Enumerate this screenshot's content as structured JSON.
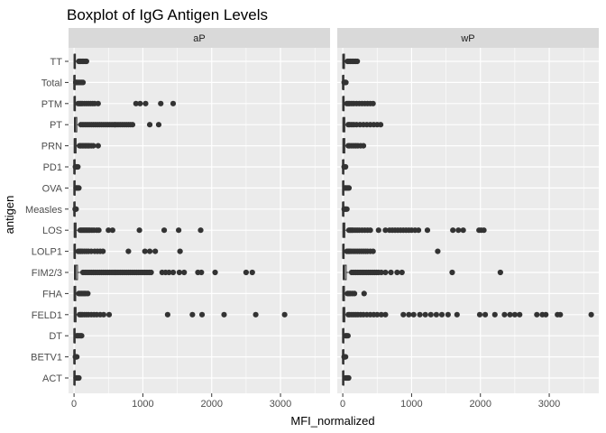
{
  "chart_data": {
    "type": "boxplot",
    "title": "Boxplot of IgG Antigen Levels",
    "xlabel": "MFI_normalized",
    "ylabel": "antigen",
    "xlim": [
      -80,
      3720
    ],
    "xticks": [
      0,
      1000,
      2000,
      3000
    ],
    "xtick_labels": [
      "0",
      "1000",
      "2000",
      "3000"
    ],
    "categories": [
      "TT",
      "Total",
      "PTM",
      "PT",
      "PRN",
      "PD1",
      "OVA",
      "Measles",
      "LOS",
      "LOLP1",
      "FIM2/3",
      "FHA",
      "FELD1",
      "DT",
      "BETV1",
      "ACT"
    ],
    "colors": {
      "panel": "#ebebeb",
      "grid": "#ffffff",
      "strip": "#d9d9d9",
      "points": "#333333"
    },
    "panels": [
      {
        "name": "aP",
        "boxes": [
          {
            "antigen": "TT",
            "q1": 2,
            "median": 8,
            "q3": 20,
            "wmax": 60,
            "outliers": [
              70,
              85,
              100,
              120,
              140,
              160,
              180
            ]
          },
          {
            "antigen": "Total",
            "q1": 1,
            "median": 3,
            "q3": 8,
            "wmax": 20,
            "outliers": [
              25,
              35,
              50,
              70,
              90,
              110,
              130
            ]
          },
          {
            "antigen": "PTM",
            "q1": 2,
            "median": 6,
            "q3": 20,
            "wmax": 50,
            "outliers": [
              60,
              80,
              100,
              120,
              150,
              180,
              210,
              240,
              270,
              300,
              350,
              900,
              960,
              1040,
              1260,
              1440
            ]
          },
          {
            "antigen": "PT",
            "q1": 5,
            "median": 15,
            "q3": 40,
            "wmax": 90,
            "outliers": [
              100,
              130,
              160,
              190,
              220,
              250,
              280,
              310,
              340,
              370,
              400,
              430,
              460,
              490,
              520,
              550,
              580,
              610,
              640,
              670,
              700,
              730,
              760,
              790,
              820,
              850,
              1100,
              1230
            ]
          },
          {
            "antigen": "PRN",
            "q1": 3,
            "median": 10,
            "q3": 30,
            "wmax": 70,
            "outliers": [
              80,
              100,
              120,
              140,
              160,
              180,
              200,
              220,
              250,
              280,
              350
            ]
          },
          {
            "antigen": "PD1",
            "q1": 1,
            "median": 3,
            "q3": 8,
            "wmax": 15,
            "outliers": [
              20,
              30,
              40,
              55
            ]
          },
          {
            "antigen": "OVA",
            "q1": 1,
            "median": 4,
            "q3": 10,
            "wmax": 25,
            "outliers": [
              30,
              40,
              55,
              70
            ]
          },
          {
            "antigen": "Measles",
            "q1": 1,
            "median": 3,
            "q3": 6,
            "wmax": 12,
            "outliers": [
              16,
              22,
              30
            ]
          },
          {
            "antigen": "LOS",
            "q1": 3,
            "median": 10,
            "q3": 30,
            "wmax": 80,
            "outliers": [
              90,
              110,
              130,
              150,
              170,
              190,
              210,
              230,
              260,
              290,
              330,
              360,
              500,
              560,
              950,
              1310,
              1520,
              1840
            ]
          },
          {
            "antigen": "LOLP1",
            "q1": 2,
            "median": 6,
            "q3": 20,
            "wmax": 50,
            "outliers": [
              60,
              80,
              100,
              120,
              150,
              180,
              210,
              250,
              300,
              340,
              380,
              420,
              790,
              1030,
              1100,
              1180,
              1540
            ]
          },
          {
            "antigen": "FIM2/3",
            "q1": 5,
            "median": 20,
            "q3": 50,
            "wmax": 120,
            "outliers": [
              130,
              160,
              190,
              220,
              250,
              280,
              310,
              340,
              370,
              400,
              430,
              460,
              490,
              520,
              550,
              580,
              610,
              640,
              670,
              700,
              730,
              760,
              790,
              820,
              850,
              880,
              910,
              940,
              970,
              1000,
              1030,
              1060,
              1090,
              1120,
              1280,
              1330,
              1380,
              1440,
              1530,
              1600,
              1800,
              1850,
              2050,
              2500,
              2590
            ]
          },
          {
            "antigen": "FHA",
            "q1": 2,
            "median": 8,
            "q3": 25,
            "wmax": 60,
            "outliers": [
              70,
              90,
              110,
              130,
              150,
              170,
              200
            ]
          },
          {
            "antigen": "FELD1",
            "q1": 3,
            "median": 10,
            "q3": 30,
            "wmax": 70,
            "outliers": [
              80,
              100,
              120,
              150,
              180,
              210,
              250,
              290,
              330,
              380,
              430,
              510,
              1360,
              1720,
              1860,
              2180,
              2640,
              3060
            ]
          },
          {
            "antigen": "DT",
            "q1": 1,
            "median": 4,
            "q3": 12,
            "wmax": 30,
            "outliers": [
              40,
              55,
              75,
              95,
              110
            ]
          },
          {
            "antigen": "BETV1",
            "q1": 1,
            "median": 3,
            "q3": 8,
            "wmax": 15,
            "outliers": [
              20,
              30,
              40
            ]
          },
          {
            "antigen": "ACT",
            "q1": 1,
            "median": 4,
            "q3": 12,
            "wmax": 25,
            "outliers": [
              30,
              40,
              55,
              70
            ]
          }
        ]
      },
      {
        "name": "wP",
        "boxes": [
          {
            "antigen": "TT",
            "q1": 2,
            "median": 8,
            "q3": 25,
            "wmax": 60,
            "outliers": [
              70,
              90,
              110,
              130,
              150,
              170,
              190,
              210
            ]
          },
          {
            "antigen": "Total",
            "q1": 1,
            "median": 3,
            "q3": 8,
            "wmax": 15,
            "outliers": [
              20,
              30,
              45
            ]
          },
          {
            "antigen": "PTM",
            "q1": 2,
            "median": 6,
            "q3": 20,
            "wmax": 50,
            "outliers": [
              60,
              80,
              100,
              130,
              160,
              200,
              240,
              280,
              320,
              360,
              400,
              440
            ]
          },
          {
            "antigen": "PT",
            "q1": 3,
            "median": 10,
            "q3": 30,
            "wmax": 70,
            "outliers": [
              80,
              100,
              130,
              160,
              200,
              250,
              300,
              350,
              400,
              450,
              500,
              550
            ]
          },
          {
            "antigen": "PRN",
            "q1": 3,
            "median": 10,
            "q3": 30,
            "wmax": 70,
            "outliers": [
              80,
              100,
              130,
              160,
              190,
              220,
              260,
              300
            ]
          },
          {
            "antigen": "PD1",
            "q1": 1,
            "median": 3,
            "q3": 8,
            "wmax": 15,
            "outliers": [
              20,
              30,
              40
            ]
          },
          {
            "antigen": "OVA",
            "q1": 1,
            "median": 4,
            "q3": 10,
            "wmax": 25,
            "outliers": [
              35,
              50,
              70,
              90
            ]
          },
          {
            "antigen": "Measles",
            "q1": 1,
            "median": 3,
            "q3": 8,
            "wmax": 15,
            "outliers": [
              20,
              30,
              45,
              60
            ]
          },
          {
            "antigen": "LOS",
            "q1": 3,
            "median": 10,
            "q3": 30,
            "wmax": 80,
            "outliers": [
              90,
              110,
              130,
              150,
              180,
              210,
              240,
              280,
              320,
              360,
              400,
              520,
              620,
              680,
              720,
              760,
              800,
              840,
              880,
              920,
              960,
              1000,
              1050,
              1100,
              1230,
              1600,
              1680,
              1750,
              1980,
              2010,
              2050
            ]
          },
          {
            "antigen": "LOLP1",
            "q1": 2,
            "median": 6,
            "q3": 20,
            "wmax": 50,
            "outliers": [
              60,
              80,
              100,
              120,
              150,
              180,
              210,
              240,
              270,
              300,
              330,
              360,
              400,
              440,
              1380
            ]
          },
          {
            "antigen": "FIM2/3",
            "q1": 5,
            "median": 20,
            "q3": 50,
            "wmax": 120,
            "outliers": [
              130,
              160,
              190,
              220,
              250,
              280,
              310,
              340,
              370,
              400,
              430,
              460,
              490,
              520,
              560,
              620,
              700,
              790,
              860,
              1590,
              2290
            ]
          },
          {
            "antigen": "FHA",
            "q1": 2,
            "median": 8,
            "q3": 25,
            "wmax": 60,
            "outliers": [
              70,
              90,
              110,
              140,
              170,
              310
            ]
          },
          {
            "antigen": "FELD1",
            "q1": 3,
            "median": 10,
            "q3": 30,
            "wmax": 70,
            "outliers": [
              80,
              100,
              130,
              160,
              190,
              220,
              260,
              300,
              350,
              400,
              450,
              500,
              560,
              620,
              880,
              960,
              1030,
              1120,
              1200,
              1280,
              1360,
              1440,
              1530,
              1660,
              1990,
              2070,
              2210,
              2350,
              2430,
              2500,
              2570,
              2820,
              2900,
              2950,
              3120,
              3160,
              3610
            ]
          },
          {
            "antigen": "DT",
            "q1": 1,
            "median": 4,
            "q3": 12,
            "wmax": 30,
            "outliers": [
              40,
              55,
              75
            ]
          },
          {
            "antigen": "BETV1",
            "q1": 1,
            "median": 3,
            "q3": 8,
            "wmax": 15,
            "outliers": [
              20,
              30,
              40
            ]
          },
          {
            "antigen": "ACT",
            "q1": 1,
            "median": 4,
            "q3": 12,
            "wmax": 30,
            "outliers": [
              40,
              55,
              70,
              85
            ]
          }
        ]
      }
    ]
  }
}
